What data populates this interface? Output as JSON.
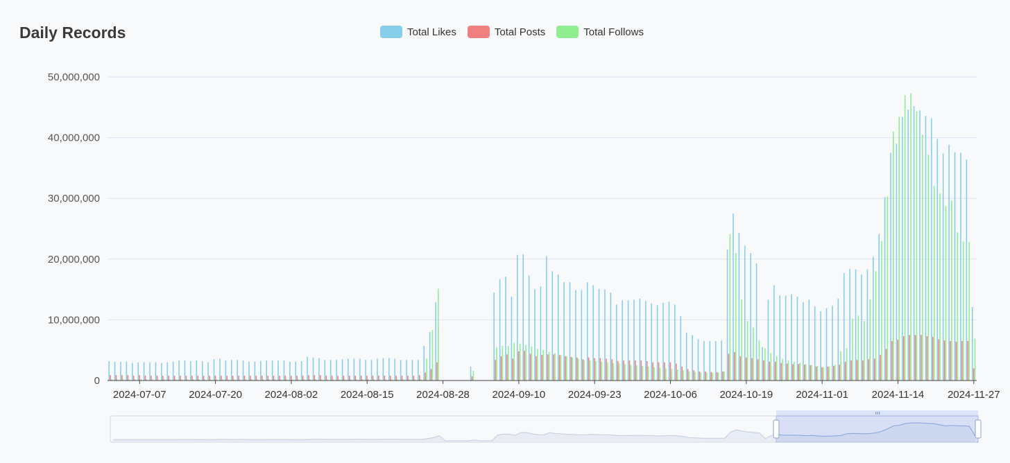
{
  "chart_data": {
    "type": "bar",
    "title": "Daily Records",
    "xlabel": "",
    "ylabel": "",
    "ylim": [
      0,
      50000000
    ],
    "yticks": [
      0,
      10000000,
      20000000,
      30000000,
      40000000,
      50000000
    ],
    "ytick_labels": [
      "0",
      "10,000,000",
      "20,000,000",
      "30,000,000",
      "40,000,000",
      "50,000,000"
    ],
    "xtick_labels": [
      "2024-07-07",
      "2024-07-20",
      "2024-08-02",
      "2024-08-15",
      "2024-08-28",
      "2024-09-10",
      "2024-09-23",
      "2024-10-06",
      "2024-10-19",
      "2024-11-01",
      "2024-11-14",
      "2024-11-27"
    ],
    "x_start": "2024-07-02",
    "x_end": "2024-11-27",
    "grid": true,
    "legend_position": "top-center",
    "data_zoom": true,
    "series": [
      {
        "name": "Total Likes",
        "color": "#87ceeb",
        "values": [
          3200000,
          3100000,
          3100000,
          3100000,
          2900000,
          3000000,
          3000000,
          3000000,
          3000000,
          2900000,
          3000000,
          3100000,
          3300000,
          3300000,
          3200000,
          3300000,
          3200000,
          3000000,
          3500000,
          3600000,
          3300000,
          3400000,
          3400000,
          3300000,
          3100000,
          3100000,
          3200000,
          3300000,
          3300000,
          3300000,
          3300000,
          3100000,
          3100000,
          3200000,
          3900000,
          3800000,
          3700000,
          3400000,
          3400000,
          3400000,
          3500000,
          3600000,
          3600000,
          3600000,
          3400000,
          3400000,
          3600000,
          3700000,
          3700000,
          3600000,
          3400000,
          3400000,
          3400000,
          3400000,
          5700000,
          8000000,
          12900000,
          null,
          null,
          null,
          null,
          null,
          2300000,
          0,
          null,
          null,
          14500000,
          16700000,
          17100000,
          13800000,
          20700000,
          20800000,
          17300000,
          15000000,
          15500000,
          20500000,
          18000000,
          17500000,
          16200000,
          16200000,
          14900000,
          14900000,
          16200000,
          15700000,
          15100000,
          15000000,
          14500000,
          12500000,
          13200000,
          13200000,
          13300000,
          13500000,
          13100000,
          12700000,
          12400000,
          12800000,
          13000000,
          12500000,
          10600000,
          7900000,
          7500000,
          6800000,
          6500000,
          6500000,
          6500000,
          6600000,
          21600000,
          27500000,
          24300000,
          22200000,
          21000000,
          19300000,
          5500000,
          13300000,
          15700000,
          14000000,
          14000000,
          14200000,
          13800000,
          12900000,
          13300000,
          12200000,
          11400000,
          11900000,
          12300000,
          13500000,
          17700000,
          18400000,
          18300000,
          17500000,
          18300000,
          20400000,
          24100000,
          30200000,
          37500000,
          39000000,
          43400000,
          44600000,
          45200000,
          44500000,
          43600000,
          43200000,
          39800000,
          37400000,
          38800000,
          37600000,
          37500000,
          36400000,
          12100000
        ]
      },
      {
        "name": "Total Posts",
        "color": "#f08080",
        "values": [
          900000,
          900000,
          900000,
          900000,
          800000,
          900000,
          800000,
          800000,
          800000,
          800000,
          800000,
          800000,
          800000,
          800000,
          800000,
          800000,
          800000,
          800000,
          800000,
          800000,
          800000,
          800000,
          800000,
          800000,
          800000,
          800000,
          800000,
          800000,
          800000,
          800000,
          800000,
          800000,
          800000,
          800000,
          900000,
          900000,
          900000,
          800000,
          800000,
          800000,
          800000,
          800000,
          800000,
          800000,
          800000,
          800000,
          800000,
          800000,
          800000,
          800000,
          800000,
          800000,
          800000,
          900000,
          1300000,
          1900000,
          3000000,
          null,
          null,
          null,
          null,
          null,
          700000,
          0,
          null,
          null,
          3400000,
          4000000,
          4300000,
          3600000,
          4800000,
          4900000,
          4400000,
          4000000,
          4200000,
          4300000,
          4300000,
          4200000,
          4000000,
          3900000,
          3800000,
          3500000,
          3800000,
          3700000,
          3700000,
          3600000,
          3500000,
          3200000,
          3300000,
          3300000,
          3300000,
          3300000,
          3200000,
          3000000,
          3000000,
          3000000,
          3000000,
          2800000,
          2300000,
          1900000,
          1700000,
          1500000,
          1500000,
          1400000,
          1400000,
          1500000,
          4400000,
          4700000,
          4000000,
          3800000,
          3700000,
          3500000,
          3300000,
          3100000,
          3100000,
          2900000,
          2800000,
          2700000,
          2700000,
          2600000,
          2500000,
          2300000,
          2200000,
          2300000,
          2400000,
          2600000,
          3100000,
          3300000,
          3400000,
          3300000,
          3500000,
          3600000,
          4200000,
          5200000,
          6500000,
          6700000,
          7300000,
          7500000,
          7500000,
          7500000,
          7300000,
          7200000,
          6800000,
          6600000,
          6500000,
          6400000,
          6500000,
          6500000,
          2000000
        ]
      },
      {
        "name": "Total Follows",
        "color": "#90ee90",
        "values": [
          200000,
          200000,
          200000,
          200000,
          200000,
          200000,
          200000,
          200000,
          200000,
          200000,
          200000,
          200000,
          200000,
          200000,
          200000,
          200000,
          200000,
          200000,
          200000,
          200000,
          200000,
          200000,
          200000,
          200000,
          200000,
          200000,
          200000,
          200000,
          200000,
          200000,
          200000,
          200000,
          200000,
          200000,
          200000,
          200000,
          200000,
          200000,
          200000,
          200000,
          200000,
          200000,
          200000,
          200000,
          200000,
          200000,
          200000,
          200000,
          200000,
          200000,
          200000,
          200000,
          200000,
          200000,
          3600000,
          8300000,
          15100000,
          null,
          null,
          null,
          null,
          null,
          1600000,
          0,
          null,
          null,
          5500000,
          5700000,
          5700000,
          6200000,
          6100000,
          5900000,
          5600000,
          5200000,
          5000000,
          4700000,
          4500000,
          4200000,
          4000000,
          3800000,
          3600000,
          3400000,
          3300000,
          3200000,
          3100000,
          3000000,
          2900000,
          2800000,
          2700000,
          2600000,
          2500000,
          2400000,
          2300000,
          2200000,
          2100000,
          2000000,
          1900000,
          1800000,
          1700000,
          1500000,
          1400000,
          1300000,
          1300000,
          1300000,
          1300000,
          1500000,
          24100000,
          21000000,
          13400000,
          9800000,
          8700000,
          6600000,
          5300000,
          4500000,
          4000000,
          3600000,
          3300000,
          3100000,
          2900000,
          2700000,
          2600000,
          2400000,
          2200000,
          2300000,
          2600000,
          4800000,
          5300000,
          10200000,
          10700000,
          9800000,
          13400000,
          18000000,
          23000000,
          30300000,
          41000000,
          43400000,
          47000000,
          47300000,
          44300000,
          40500000,
          37200000,
          32100000,
          30800000,
          28700000,
          29600000,
          24400000,
          22900000,
          22800000,
          6900000
        ]
      }
    ]
  }
}
